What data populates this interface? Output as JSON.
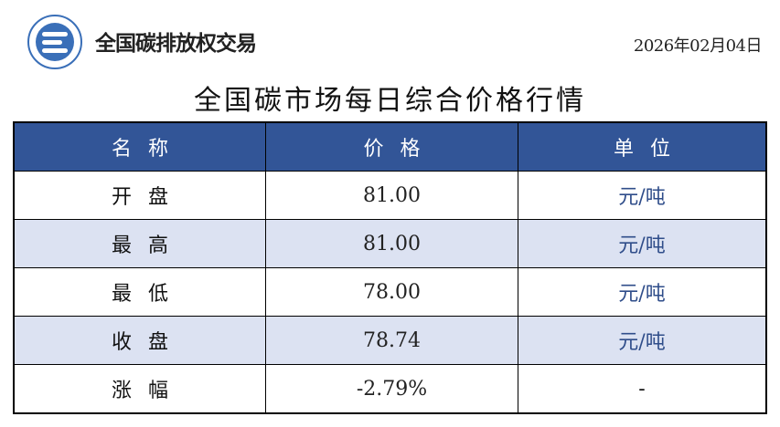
{
  "header": {
    "brand": "全国碳排放权交易",
    "date": "2026年02月04日"
  },
  "title": "全国碳市场每日综合价格行情",
  "table": {
    "columns": [
      "名称",
      "价格",
      "单位"
    ],
    "rows": [
      {
        "name": "开盘",
        "price": "81.00",
        "unit": "元/吨"
      },
      {
        "name": "最高",
        "price": "81.00",
        "unit": "元/吨"
      },
      {
        "name": "最低",
        "price": "78.00",
        "unit": "元/吨"
      },
      {
        "name": "收盘",
        "price": "78.74",
        "unit": "元/吨"
      },
      {
        "name": "涨幅",
        "price": "-2.79%",
        "unit": "-"
      }
    ]
  },
  "colors": {
    "header_bg": "#325597",
    "alt_row": "#dce2f2"
  }
}
